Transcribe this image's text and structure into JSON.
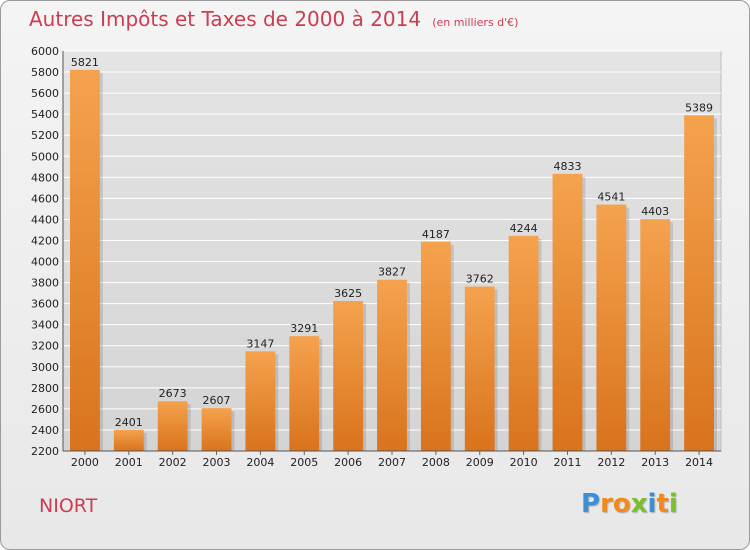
{
  "chart_data": {
    "type": "bar",
    "title": "Autres Impôts et Taxes de 2000 à 2014",
    "subtitle": "(en milliers d'€)",
    "categories": [
      "2000",
      "2001",
      "2002",
      "2003",
      "2004",
      "2005",
      "2006",
      "2007",
      "2008",
      "2009",
      "2010",
      "2011",
      "2012",
      "2013",
      "2014"
    ],
    "values": [
      5821,
      2401,
      2673,
      2607,
      3147,
      3291,
      3625,
      3827,
      4187,
      3762,
      4244,
      4833,
      4541,
      4403,
      5389
    ],
    "data_labels": [
      "5821",
      "2401",
      "2673",
      "2607",
      "3147",
      "3291",
      "3625",
      "3827",
      "4187",
      "3762",
      "4244",
      "4833",
      "4541",
      "4403",
      "5389"
    ],
    "ylim": [
      2200,
      6000
    ],
    "yticks": [
      "2200",
      "2400",
      "2600",
      "2800",
      "3000",
      "3200",
      "3400",
      "3600",
      "3800",
      "4000",
      "4200",
      "4400",
      "4600",
      "4800",
      "5000",
      "5200",
      "5400",
      "5600",
      "5800",
      "6000"
    ],
    "grid": "horizontal",
    "bar_color_top": "#f5a24e",
    "bar_color_bottom": "#d9731c"
  },
  "footer": {
    "location": "NIORT",
    "logo_letters": [
      "P",
      "r",
      "o",
      "x",
      "i",
      "t",
      "i"
    ],
    "logo_colors": [
      "#3a8fd6",
      "#f08a1c",
      "#f08a1c",
      "#7cbf2e",
      "#3a8fd6",
      "#f08a1c",
      "#7cbf2e"
    ]
  }
}
